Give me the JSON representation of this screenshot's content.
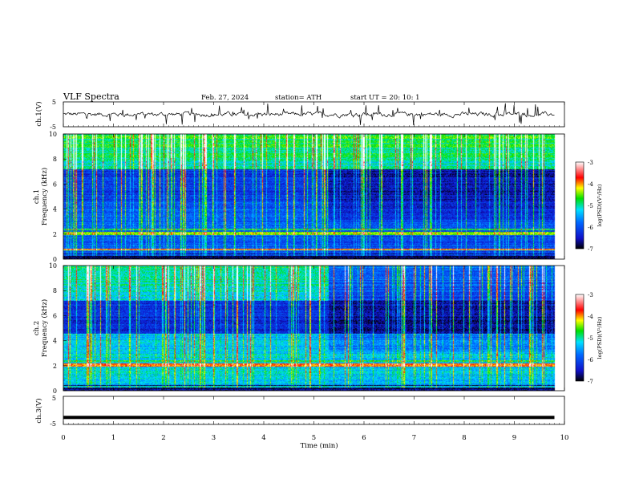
{
  "header": {
    "title": "VLF  Spectra",
    "date": "Feb. 27, 2024",
    "station": "station= ATH",
    "start": "start  UT  =    20: 10: 1"
  },
  "colorbar": {
    "label": "log(PSD)(V²/Hz)",
    "ticks": [
      "-3",
      "-4",
      "-5",
      "-6",
      "-7"
    ],
    "range": [
      -7,
      -3
    ],
    "colors": [
      "#000000",
      "#1010c8",
      "#0066ff",
      "#00e0ff",
      "#00e000",
      "#ffff00",
      "#ff0000",
      "#ffffff"
    ]
  },
  "chart_data": [
    {
      "type": "line",
      "panel": "ch1-waveform",
      "ylabel": "ch.1(V)",
      "ylim": [
        -5,
        5
      ],
      "yticks": [
        "5",
        "-5"
      ],
      "xlim": [
        0,
        10
      ],
      "series": [
        {
          "values_description_note": "",
          "mean": 0,
          "amplitude_typical": 0.8,
          "line_color": "#000000"
        }
      ]
    },
    {
      "type": "heatmap",
      "panel": "ch1-spectrogram",
      "ylabel": "ch.1",
      "ylabel2": "Frequency  (kHz)",
      "ylim": [
        0,
        10
      ],
      "yticks": [
        "0",
        "2",
        "4",
        "6",
        "8",
        "10"
      ],
      "xlim": [
        0,
        10
      ],
      "data_end_min": 9.8,
      "quiet_interval_min": [
        5.3,
        9.8
      ],
      "strong_band_khz": 2.1,
      "color_scale": "log(PSD)(V²/Hz)"
    },
    {
      "type": "heatmap",
      "panel": "ch2-spectrogram",
      "ylabel": "ch.2",
      "ylabel2": "Frequency  (kHz)",
      "ylim": [
        0,
        10
      ],
      "yticks": [
        "0",
        "2",
        "4",
        "6",
        "8",
        "10"
      ],
      "xlim": [
        0,
        10
      ],
      "data_end_min": 9.8,
      "quiet_interval_min": [
        5.3,
        9.8
      ],
      "strong_band_khz": 2.1,
      "color_scale": "log(PSD)(V²/Hz)"
    },
    {
      "type": "line",
      "panel": "ch3-waveform",
      "ylabel": "ch.3(V)",
      "ylim": [
        -5,
        5
      ],
      "yticks": [
        "5",
        "-5"
      ],
      "xlim": [
        0,
        10
      ],
      "xlabel": "Time  (min)",
      "xticks": [
        "0",
        "1",
        "2",
        "3",
        "4",
        "5",
        "6",
        "7",
        "8",
        "9",
        "10"
      ],
      "series": [
        {
          "constant_value": -2.5,
          "data_end_min": 9.8
        }
      ]
    }
  ]
}
